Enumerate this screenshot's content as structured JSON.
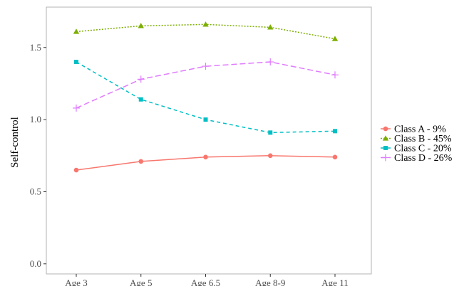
{
  "chart_data": {
    "type": "line",
    "title": "",
    "xlabel": "",
    "ylabel": "Self-control",
    "categories": [
      "Age 3",
      "Age 5",
      "Age 6.5",
      "Age 8-9",
      "Age 11"
    ],
    "ylim": [
      -0.07,
      1.78
    ],
    "yticks": [
      "0.0",
      "0.5",
      "1.0",
      "1.5"
    ],
    "ytick_values": [
      0.0,
      0.5,
      1.0,
      1.5
    ],
    "grid": false,
    "legend_position": "right",
    "series": [
      {
        "name": "Class A - 9%",
        "values": [
          0.65,
          0.71,
          0.74,
          0.75,
          0.74
        ],
        "color": "#F8766D",
        "marker": "circle",
        "dash": "solid"
      },
      {
        "name": "Class B - 45%",
        "values": [
          1.61,
          1.65,
          1.66,
          1.64,
          1.56
        ],
        "color": "#7CAE00",
        "marker": "triangle",
        "dash": "dotted"
      },
      {
        "name": "Class C - 20%",
        "values": [
          1.4,
          1.14,
          1.0,
          0.91,
          0.92
        ],
        "color": "#00BFC4",
        "marker": "square",
        "dash": "dashed"
      },
      {
        "name": "Class D - 26%",
        "values": [
          1.08,
          1.28,
          1.37,
          1.4,
          1.31
        ],
        "color": "#E07BFF",
        "marker": "plus",
        "dash": "longdash"
      }
    ]
  }
}
